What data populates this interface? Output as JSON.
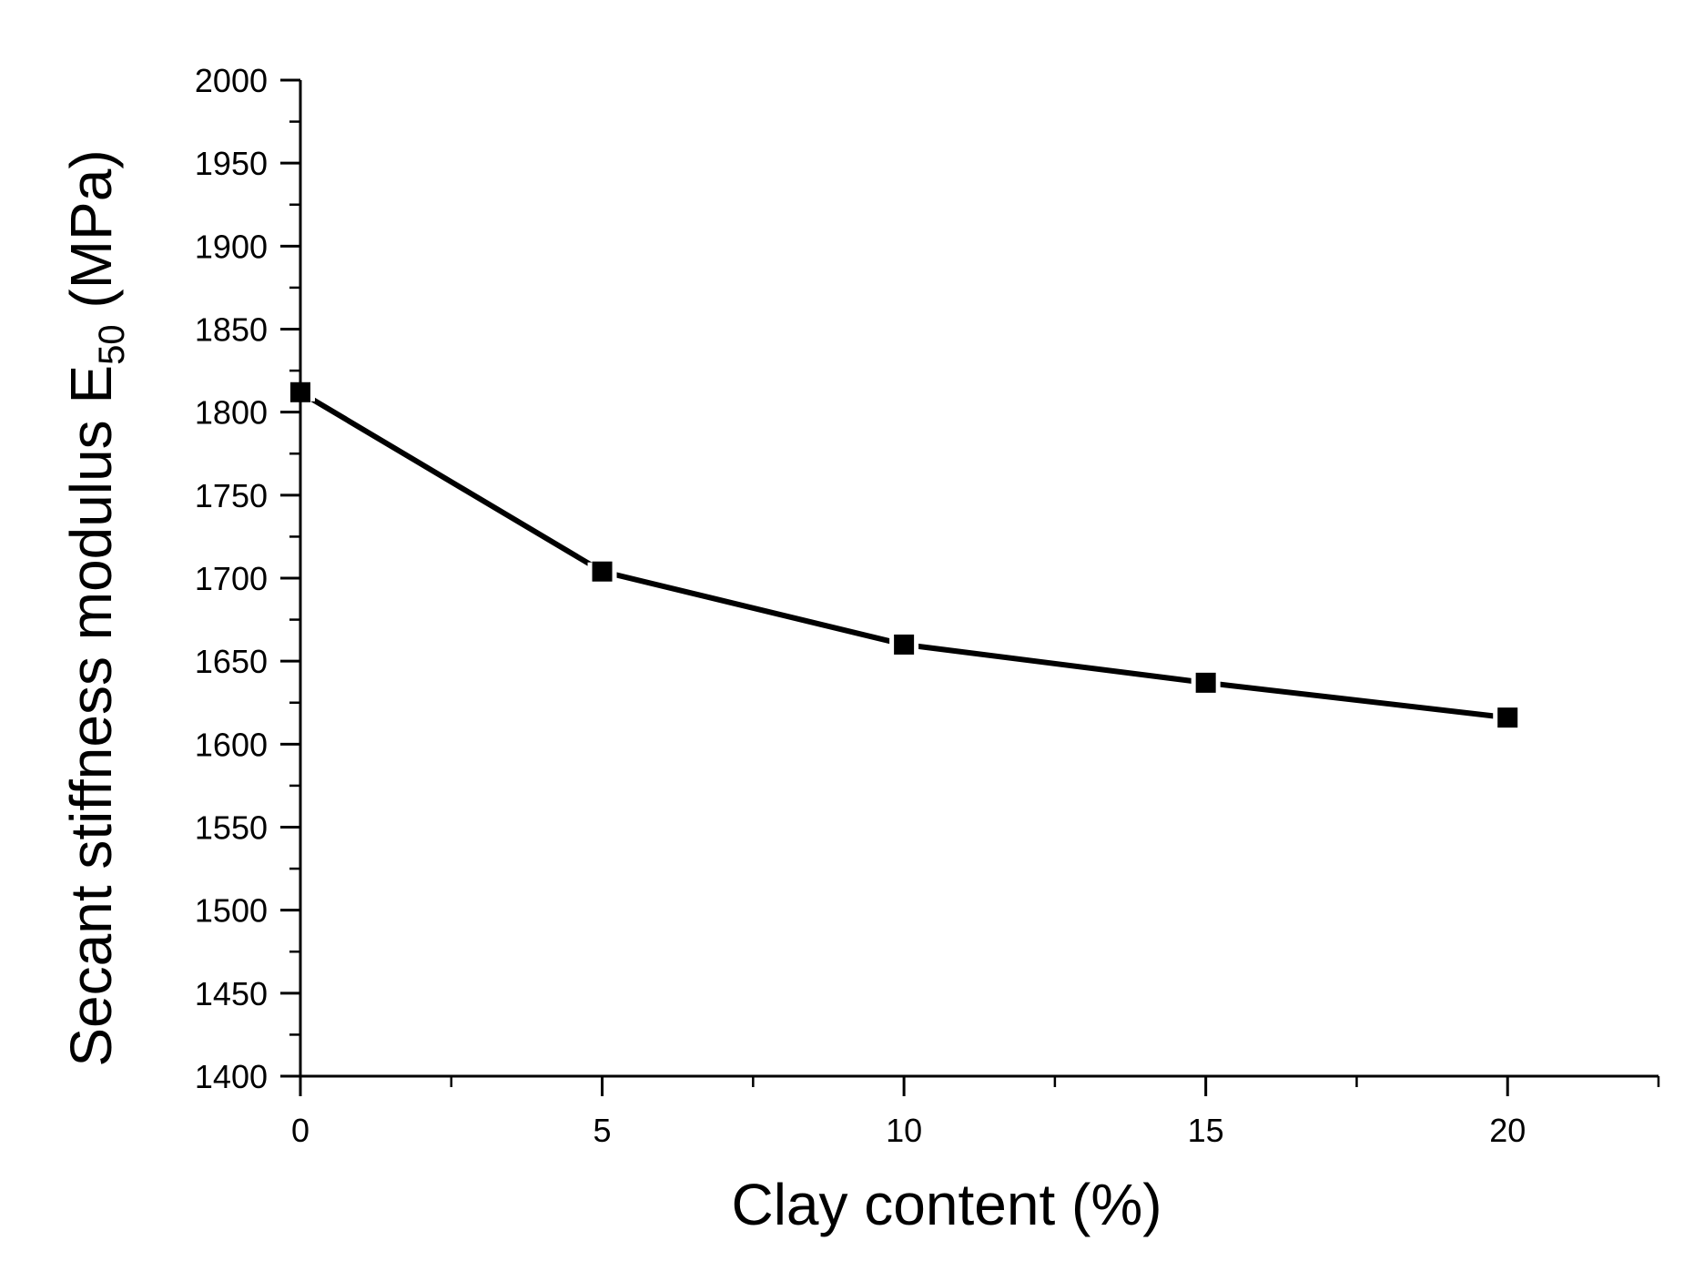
{
  "chart_data": {
    "type": "line",
    "title": "",
    "xlabel": "Clay content (%)",
    "ylabel": {
      "main": "Secant  stiffness modulus E",
      "subscript": "50",
      "unit": " (MPa)"
    },
    "xlim": [
      0,
      22.5
    ],
    "ylim": [
      1400,
      2000
    ],
    "x_ticks": [
      "0",
      "5",
      "10",
      "15",
      "20"
    ],
    "y_ticks": [
      "1400",
      "1450",
      "1500",
      "1550",
      "1600",
      "1650",
      "1700",
      "1750",
      "1800",
      "1850",
      "1900",
      "1950",
      "2000"
    ],
    "grid": false,
    "legend": "none",
    "series": [
      {
        "marker": "square",
        "color": "#000000",
        "x": [
          0,
          5,
          10,
          15,
          20
        ],
        "y": [
          1812,
          1704,
          1660,
          1637,
          1616
        ]
      }
    ]
  }
}
